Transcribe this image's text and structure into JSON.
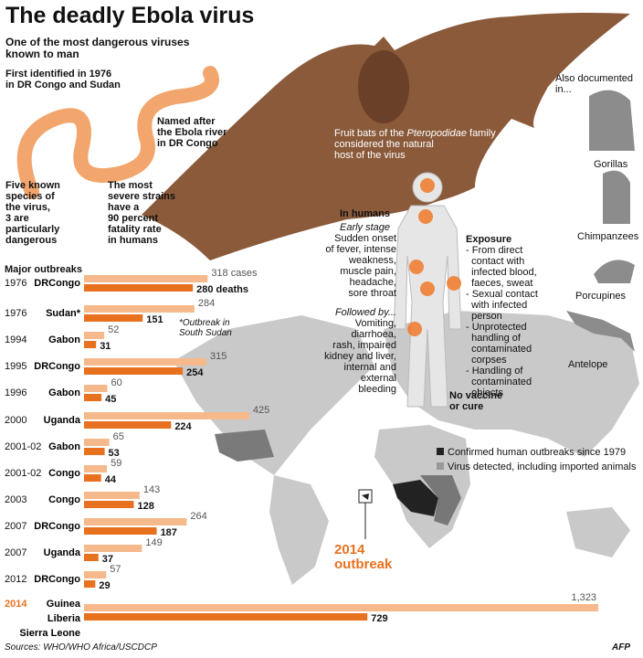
{
  "header": {
    "title": "The deadly Ebola virus",
    "subtitle": [
      "One of the most dangerous viruses",
      "known to man"
    ]
  },
  "facts": {
    "identified": [
      "First identified in 1976",
      "in DR Congo and Sudan"
    ],
    "named": [
      "Named after",
      "the Ebola river",
      "in DR Congo"
    ],
    "species": [
      "Five known",
      "species of",
      "the virus,",
      "3 are",
      "particularly",
      "dangerous"
    ],
    "strains": [
      "The most",
      "severe strains",
      "have a",
      "90 percent",
      "fatality rate",
      "in humans"
    ]
  },
  "bat": {
    "line1": "Fruit bats of the",
    "italic": "Pteropodidae",
    "rest": " family",
    "lines": [
      "considered the natural",
      "host of the virus"
    ]
  },
  "humans": {
    "title": "In humans",
    "early": "Early stage",
    "early_lines": [
      "Sudden onset",
      "of fever, intense",
      "weakness,",
      "muscle pain,",
      "headache,",
      "sore throat"
    ],
    "followed": "Followed by...",
    "followed_lines": [
      "Vomiting,",
      "diarrhoea,",
      "rash, impaired",
      "kidney and liver,",
      "internal and",
      "external",
      "bleeding"
    ],
    "no_vaccine": [
      "No vaccine",
      "or cure"
    ]
  },
  "exposure": {
    "title": "Exposure",
    "lines": [
      "- From direct",
      "  contact with",
      "  infected blood,",
      "  faeces, sweat",
      "- Sexual contact",
      "  with infected",
      "  person",
      "- Unprotected",
      "  handling of",
      "  contaminated",
      "  corpses",
      "- Handling of",
      "  contaminated",
      "  objects"
    ]
  },
  "animals": {
    "title": [
      "Also documented",
      "in..."
    ],
    "names": [
      "Gorillas",
      "Chimpanzees",
      "Porcupines",
      "Antelope"
    ]
  },
  "map": {
    "legend": [
      "Confirmed human outbreaks since 1979",
      "Virus detected, including imported animals"
    ],
    "outbreak_2014": [
      "2014",
      "outbreak"
    ]
  },
  "footer": {
    "sources": "Sources: WHO/WHO Africa/USCDCP",
    "agency": "AFP"
  },
  "chart_data": {
    "type": "bar",
    "title": "Major outbreaks",
    "orientation": "horizontal",
    "years": [
      "1976",
      "1976",
      "1994",
      "1995",
      "1996",
      "2000",
      "2001-02",
      "2001-02",
      "2003",
      "2007",
      "2007",
      "2012",
      "2014"
    ],
    "categories": [
      "DRCongo",
      "Sudan*",
      "Gabon",
      "DRCongo",
      "Gabon",
      "Uganda",
      "Gabon",
      "Congo",
      "Congo",
      "DRCongo",
      "Uganda",
      "DRCongo",
      [
        "Guinea",
        "Liberia",
        "Sierra Leone"
      ]
    ],
    "series": [
      {
        "name": "cases",
        "color": "#f6b98b",
        "values": [
          318,
          284,
          52,
          315,
          60,
          425,
          65,
          59,
          143,
          264,
          149,
          57,
          1323
        ],
        "value_labels": [
          "318 cases",
          "284",
          "52",
          "315",
          "60",
          "425",
          "65",
          "59",
          "143",
          "264",
          "149",
          "57",
          "1,323"
        ]
      },
      {
        "name": "deaths",
        "color": "#e8711f",
        "values": [
          280,
          151,
          31,
          254,
          45,
          224,
          53,
          44,
          128,
          187,
          37,
          29,
          729
        ],
        "value_labels": [
          "280 deaths",
          "151",
          "31",
          "254",
          "45",
          "224",
          "53",
          "44",
          "128",
          "187",
          "37",
          "29",
          "729"
        ]
      }
    ],
    "annotation": [
      "*Outbreak in",
      "South Sudan"
    ]
  }
}
